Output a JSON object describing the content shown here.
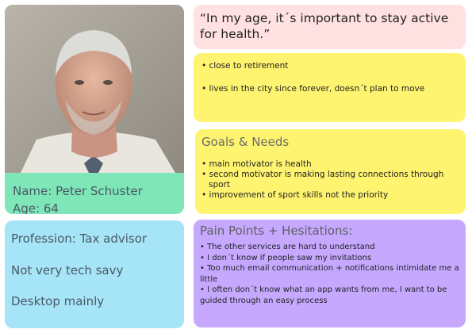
{
  "persona": {
    "name": "Name: Peter Schuster",
    "age": "Age: 64"
  },
  "profile": {
    "lines": [
      "Profession: Tax advisor",
      "Not very tech savy",
      "Desktop mainly"
    ]
  },
  "quote": "“In my age, it´s important to stay active for health.”",
  "facts": [
    "• close to retirement",
    "• lives in the city since forever, doesn´t plan to move"
  ],
  "goals": {
    "title": "Goals & Needs",
    "items": [
      "• main motivator is health",
      "• second motivator is making lasting connections through sport",
      "• improvement of sport skills not the priority"
    ]
  },
  "pain_points": {
    "title": "Pain Points + Hesitations:",
    "items": [
      "• The other services are hard to understand",
      "• I don´t know if people saw my invitations",
      "• Too much email communication + notifications intimidate me a little",
      "• I often don´t know what an app wants from me, I want to be guided through an easy process"
    ]
  },
  "colors": {
    "name_card": "#7fe6b8",
    "profession_card": "#a6e4f7",
    "quote_card": "#ffe1e1",
    "facts_card": "#fff470",
    "pain_card": "#c6a8ff"
  }
}
